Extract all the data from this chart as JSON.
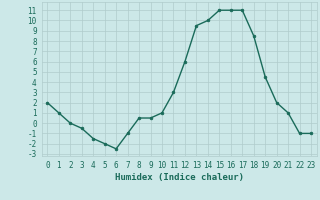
{
  "x": [
    0,
    1,
    2,
    3,
    4,
    5,
    6,
    7,
    8,
    9,
    10,
    11,
    12,
    13,
    14,
    15,
    16,
    17,
    18,
    19,
    20,
    21,
    22,
    23
  ],
  "y": [
    2,
    1,
    0,
    -0.5,
    -1.5,
    -2,
    -2.5,
    -1,
    0.5,
    0.5,
    1,
    3,
    6,
    9.5,
    10,
    11,
    11,
    11,
    8.5,
    4.5,
    2,
    1,
    -1,
    -1
  ],
  "line_color": "#1a6b5a",
  "marker": "o",
  "marker_size": 2.0,
  "linewidth": 1.0,
  "xlabel": "Humidex (Indice chaleur)",
  "xlim": [
    -0.5,
    23.5
  ],
  "ylim": [
    -3.2,
    11.8
  ],
  "yticks": [
    -3,
    -2,
    -1,
    0,
    1,
    2,
    3,
    4,
    5,
    6,
    7,
    8,
    9,
    10,
    11
  ],
  "xticks": [
    0,
    1,
    2,
    3,
    4,
    5,
    6,
    7,
    8,
    9,
    10,
    11,
    12,
    13,
    14,
    15,
    16,
    17,
    18,
    19,
    20,
    21,
    22,
    23
  ],
  "background_color": "#cce8e8",
  "grid_color": "#b0cccc",
  "label_color": "#1a6b5a",
  "xlabel_fontsize": 6.5,
  "tick_fontsize": 5.5
}
